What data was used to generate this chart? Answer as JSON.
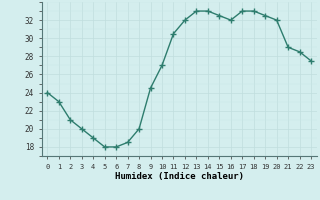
{
  "x": [
    0,
    1,
    2,
    3,
    4,
    5,
    6,
    7,
    8,
    9,
    10,
    11,
    12,
    13,
    14,
    15,
    16,
    17,
    18,
    19,
    20,
    21,
    22,
    23
  ],
  "y": [
    24,
    23,
    21,
    20,
    19,
    18,
    18,
    18.5,
    20,
    24.5,
    27,
    30.5,
    32,
    33,
    33,
    32.5,
    32,
    33,
    33,
    32.5,
    32,
    29,
    28.5,
    27.5
  ],
  "line_color": "#2e7d6e",
  "marker_color": "#2e7d6e",
  "bg_color": "#d4eeee",
  "grid_major_color": "#c0dede",
  "grid_minor_color": "#c8e8e8",
  "xlabel": "Humidex (Indice chaleur)",
  "xlim": [
    -0.5,
    23.5
  ],
  "ylim": [
    17,
    34
  ],
  "yticks": [
    18,
    20,
    22,
    24,
    26,
    28,
    30,
    32
  ],
  "xticks": [
    0,
    1,
    2,
    3,
    4,
    5,
    6,
    7,
    8,
    9,
    10,
    11,
    12,
    13,
    14,
    15,
    16,
    17,
    18,
    19,
    20,
    21,
    22,
    23
  ],
  "xtick_labels": [
    "0",
    "1",
    "2",
    "3",
    "4",
    "5",
    "6",
    "7",
    "8",
    "9",
    "10",
    "11",
    "12",
    "13",
    "14",
    "15",
    "16",
    "17",
    "18",
    "19",
    "20",
    "21",
    "22",
    "23"
  ],
  "linewidth": 1.0,
  "markersize": 2.0
}
